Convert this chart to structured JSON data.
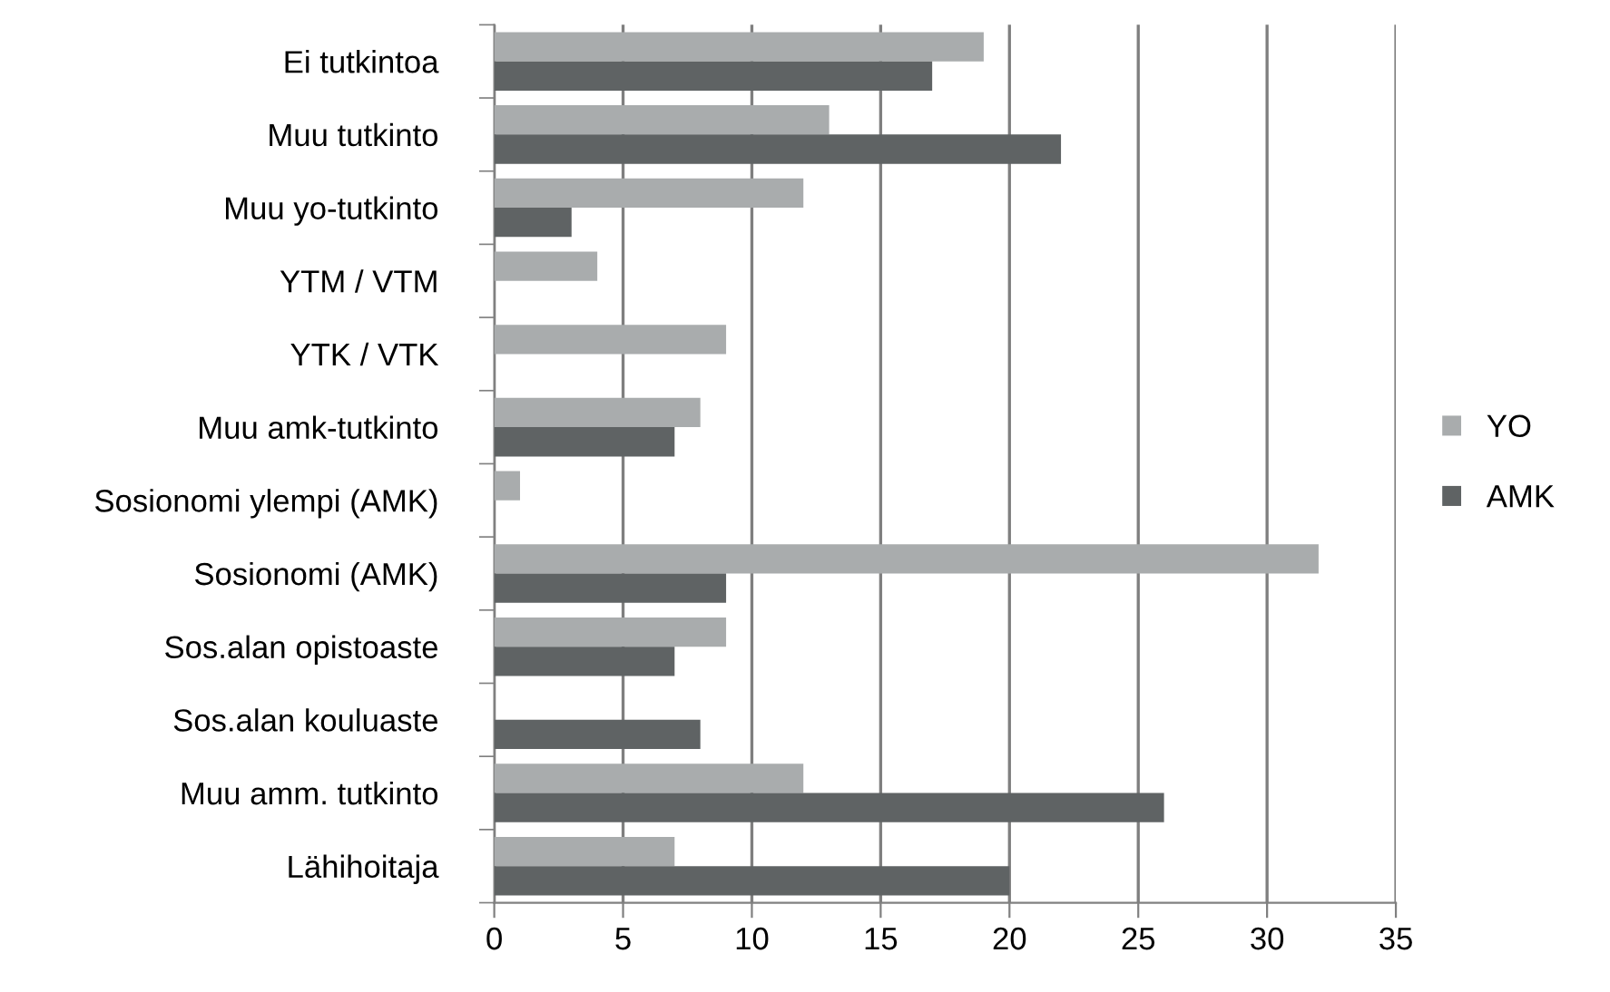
{
  "chart_data": {
    "type": "bar",
    "orientation": "horizontal",
    "categories": [
      "Ei tutkintoa",
      "Muu tutkinto",
      "Muu yo-tutkinto",
      "YTM / VTM",
      "YTK / VTK",
      "Muu amk-tutkinto",
      "Sosionomi ylempi (AMK)",
      "Sosionomi (AMK)",
      "Sos.alan opistoaste",
      "Sos.alan kouluaste",
      "Muu amm. tutkinto",
      "Lähihoitaja"
    ],
    "series": [
      {
        "name": "YO",
        "color": "#a9acad",
        "values": [
          19,
          13,
          12,
          4,
          9,
          8,
          1,
          32,
          9,
          null,
          12,
          7
        ]
      },
      {
        "name": "AMK",
        "color": "#5f6364",
        "values": [
          17,
          22,
          3,
          null,
          null,
          7,
          null,
          9,
          7,
          8,
          26,
          20
        ]
      }
    ],
    "xlim": [
      0,
      35
    ],
    "xticks": [
      0,
      5,
      10,
      15,
      20,
      25,
      30,
      35
    ],
    "grid": "x",
    "legend": "right"
  }
}
